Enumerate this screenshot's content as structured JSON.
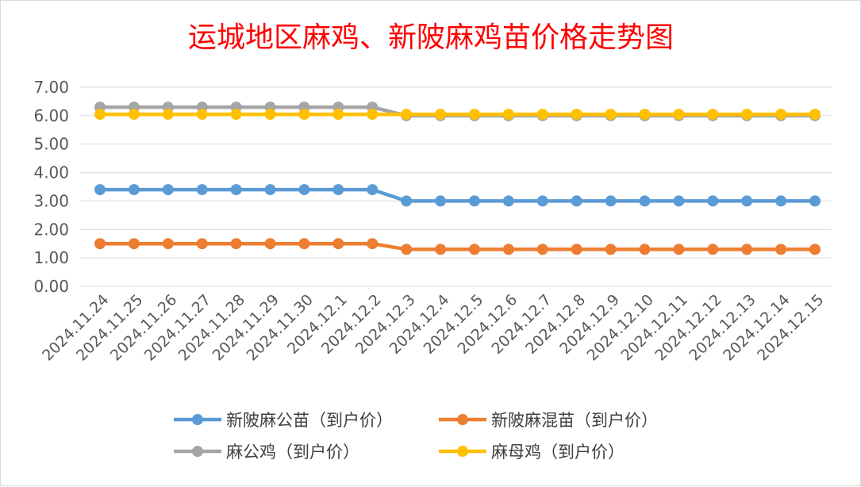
{
  "chart_data": {
    "type": "line",
    "title": "运城地区麻鸡、新陂麻鸡苗价格走势图",
    "xlabel": "",
    "ylabel": "",
    "ylim": [
      0,
      7
    ],
    "y_ticks": [
      "0.00",
      "1.00",
      "2.00",
      "3.00",
      "4.00",
      "5.00",
      "6.00",
      "7.00"
    ],
    "grid": true,
    "legend_position": "bottom",
    "categories": [
      "2024.11.24",
      "2024.11.25",
      "2024.11.26",
      "2024.11.27",
      "2024.11.28",
      "2024.11.29",
      "2024.11.30",
      "2024.12.1",
      "2024.12.2",
      "2024.12.3",
      "2024.12.4",
      "2024.12.5",
      "2024.12.6",
      "2024.12.7",
      "2024.12.8",
      "2024.12.9",
      "2024.12.10",
      "2024.12.11",
      "2024.12.12",
      "2024.12.13",
      "2024.12.14",
      "2024.12.15"
    ],
    "series": [
      {
        "name": "新陂麻公苗（到户价）",
        "color": "#5b9bd5",
        "values": [
          3.4,
          3.4,
          3.4,
          3.4,
          3.4,
          3.4,
          3.4,
          3.4,
          3.4,
          3.0,
          3.0,
          3.0,
          3.0,
          3.0,
          3.0,
          3.0,
          3.0,
          3.0,
          3.0,
          3.0,
          3.0,
          3.0
        ]
      },
      {
        "name": "新陂麻混苗（到户价）",
        "color": "#ed7d31",
        "values": [
          1.5,
          1.5,
          1.5,
          1.5,
          1.5,
          1.5,
          1.5,
          1.5,
          1.5,
          1.3,
          1.3,
          1.3,
          1.3,
          1.3,
          1.3,
          1.3,
          1.3,
          1.3,
          1.3,
          1.3,
          1.3,
          1.3
        ]
      },
      {
        "name": "麻公鸡（到户价）",
        "color": "#a5a5a5",
        "values": [
          6.3,
          6.3,
          6.3,
          6.3,
          6.3,
          6.3,
          6.3,
          6.3,
          6.3,
          6.0,
          6.0,
          6.0,
          6.0,
          6.0,
          6.0,
          6.0,
          6.0,
          6.0,
          6.0,
          6.0,
          6.0,
          6.0
        ]
      },
      {
        "name": "麻母鸡（到户价）",
        "color": "#ffc000",
        "values": [
          6.05,
          6.05,
          6.05,
          6.05,
          6.05,
          6.05,
          6.05,
          6.05,
          6.05,
          6.05,
          6.05,
          6.05,
          6.05,
          6.05,
          6.05,
          6.05,
          6.05,
          6.05,
          6.05,
          6.05,
          6.05,
          6.05
        ]
      }
    ]
  }
}
